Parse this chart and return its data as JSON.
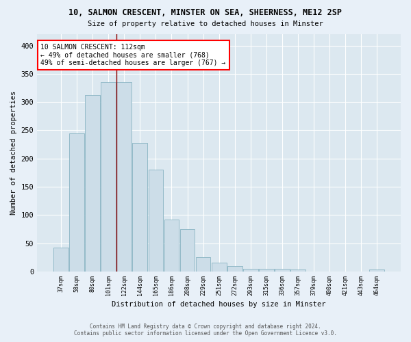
{
  "title1": "10, SALMON CRESCENT, MINSTER ON SEA, SHEERNESS, ME12 2SP",
  "title2": "Size of property relative to detached houses in Minster",
  "xlabel": "Distribution of detached houses by size in Minster",
  "ylabel": "Number of detached properties",
  "categories": [
    "37sqm",
    "58sqm",
    "80sqm",
    "101sqm",
    "122sqm",
    "144sqm",
    "165sqm",
    "186sqm",
    "208sqm",
    "229sqm",
    "251sqm",
    "272sqm",
    "293sqm",
    "315sqm",
    "336sqm",
    "357sqm",
    "379sqm",
    "400sqm",
    "421sqm",
    "443sqm",
    "464sqm"
  ],
  "values": [
    42,
    245,
    312,
    335,
    335,
    228,
    180,
    92,
    75,
    25,
    15,
    9,
    5,
    5,
    5,
    3,
    0,
    0,
    0,
    0,
    3
  ],
  "bar_color": "#ccdde8",
  "bar_edge_color": "#7aaabb",
  "marker_idx": 4,
  "marker_label": "10 SALMON CRESCENT: 112sqm",
  "annotation_line1": "← 49% of detached houses are smaller (768)",
  "annotation_line2": "49% of semi-detached houses are larger (767) →",
  "ylim": [
    0,
    420
  ],
  "yticks": [
    0,
    50,
    100,
    150,
    200,
    250,
    300,
    350,
    400
  ],
  "background_color": "#dce8f0",
  "fig_background_color": "#e8f0f8",
  "grid_color": "#ffffff",
  "footer1": "Contains HM Land Registry data © Crown copyright and database right 2024.",
  "footer2": "Contains public sector information licensed under the Open Government Licence v3.0."
}
